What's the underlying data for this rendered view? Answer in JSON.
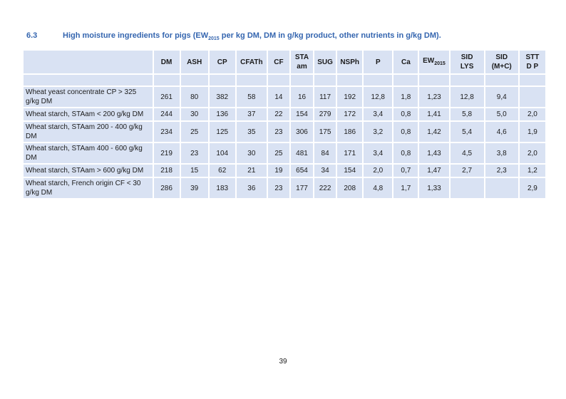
{
  "page": {
    "number": "39"
  },
  "heading": {
    "number": "6.3",
    "title_pre": "High moisture ingredients for pigs (EW",
    "title_sub": "2015",
    "title_post": " per kg DM, DM in g/kg product, other nutrients in g/kg DM).",
    "color": "#3465af"
  },
  "table": {
    "cell_bg": "#d9e2f3",
    "gridline_color": "#ffffff",
    "columns": [
      {
        "id": "ingredient",
        "label": ""
      },
      {
        "id": "dm",
        "label": "DM"
      },
      {
        "id": "ash",
        "label": "ASH"
      },
      {
        "id": "cp",
        "label": "CP"
      },
      {
        "id": "cfath",
        "label": "CFATh"
      },
      {
        "id": "cf",
        "label": "CF"
      },
      {
        "id": "sta-am",
        "label": "STA am",
        "label_lines": [
          "STA",
          "am"
        ]
      },
      {
        "id": "sug",
        "label": "SUG"
      },
      {
        "id": "nsph",
        "label": "NSPh"
      },
      {
        "id": "p",
        "label": "P"
      },
      {
        "id": "ca",
        "label": "Ca"
      },
      {
        "id": "ew2015",
        "label": "EW2015",
        "label_main": "EW",
        "label_sub": "2015"
      },
      {
        "id": "sid-lys",
        "label": "SID LYS",
        "label_lines": [
          "SID",
          "LYS"
        ]
      },
      {
        "id": "sid-mc",
        "label": "SID (M+C)"
      },
      {
        "id": "stt-dp",
        "label": "STT D P",
        "label_lines": [
          "STT",
          "D P"
        ]
      }
    ],
    "rows": [
      {
        "spacer": true,
        "name": "",
        "values": [
          "",
          "",
          "",
          "",
          "",
          "",
          "",
          "",
          "",
          "",
          "",
          "",
          "",
          ""
        ]
      },
      {
        "name": "Wheat yeast concentrate CP > 325 g/kg DM",
        "values": [
          "261",
          "80",
          "382",
          "58",
          "14",
          "16",
          "117",
          "192",
          "12,8",
          "1,8",
          "1,23",
          "12,8",
          "9,4",
          ""
        ]
      },
      {
        "name": "Wheat starch, STAam < 200 g/kg DM",
        "values": [
          "244",
          "30",
          "136",
          "37",
          "22",
          "154",
          "279",
          "172",
          "3,4",
          "0,8",
          "1,41",
          "5,8",
          "5,0",
          "2,0"
        ]
      },
      {
        "name": "Wheat starch, STAam 200 - 400 g/kg DM",
        "values": [
          "234",
          "25",
          "125",
          "35",
          "23",
          "306",
          "175",
          "186",
          "3,2",
          "0,8",
          "1,42",
          "5,4",
          "4,6",
          "1,9"
        ]
      },
      {
        "name": "Wheat starch, STAam 400 - 600 g/kg DM",
        "values": [
          "219",
          "23",
          "104",
          "30",
          "25",
          "481",
          "84",
          "171",
          "3,4",
          "0,8",
          "1,43",
          "4,5",
          "3,8",
          "2,0"
        ]
      },
      {
        "name": "Wheat starch, STAam > 600 g/kg DM",
        "values": [
          "218",
          "15",
          "62",
          "21",
          "19",
          "654",
          "34",
          "154",
          "2,0",
          "0,7",
          "1,47",
          "2,7",
          "2,3",
          "1,2"
        ]
      },
      {
        "name": "Wheat starch, French origin CF < 30 g/kg DM",
        "values": [
          "286",
          "39",
          "183",
          "36",
          "23",
          "177",
          "222",
          "208",
          "4,8",
          "1,7",
          "1,33",
          "",
          "",
          "2,9"
        ]
      }
    ]
  }
}
